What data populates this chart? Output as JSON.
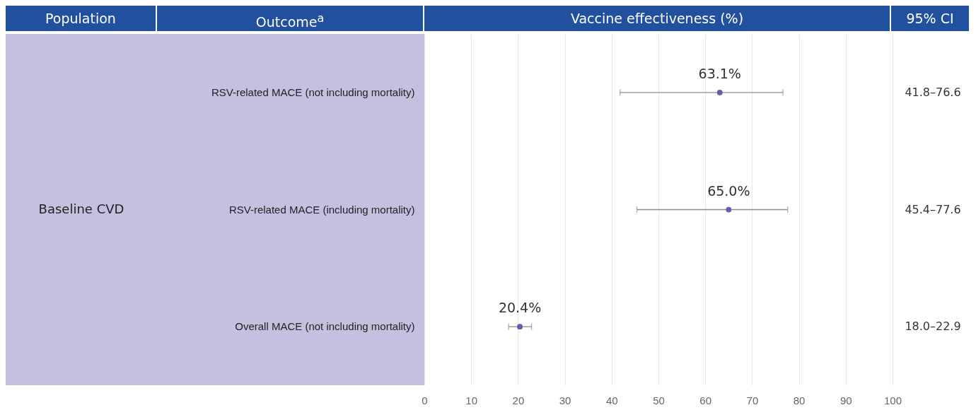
{
  "chart_data": {
    "type": "scatter",
    "orientation": "horizontal",
    "xlabel": "Vaccine effectiveness (%)",
    "categories": [
      "RSV-related MACE (not including mortality)",
      "RSV-related MACE (including mortality)",
      "Overall MACE (not including mortality)"
    ],
    "values": [
      63.1,
      65.0,
      20.4
    ],
    "errors": [
      [
        41.8,
        76.6
      ],
      [
        45.4,
        77.6
      ],
      [
        18.0,
        22.9
      ]
    ],
    "value_labels": [
      "63.1%",
      "65.0%",
      "20.4%"
    ],
    "color": "#6b5ba8",
    "xlim": [
      0,
      100
    ],
    "xticks": [
      0,
      10,
      20,
      30,
      40,
      50,
      60,
      70,
      80,
      90,
      100
    ],
    "grid": "x",
    "marker": "circle",
    "annotations": [
      "Population",
      "Outcome$^{a}$",
      "95% CI",
      "Baseline CVD",
      "41.8–76.6",
      "45.4–77.6",
      "18.0–22.9"
    ]
  }
}
